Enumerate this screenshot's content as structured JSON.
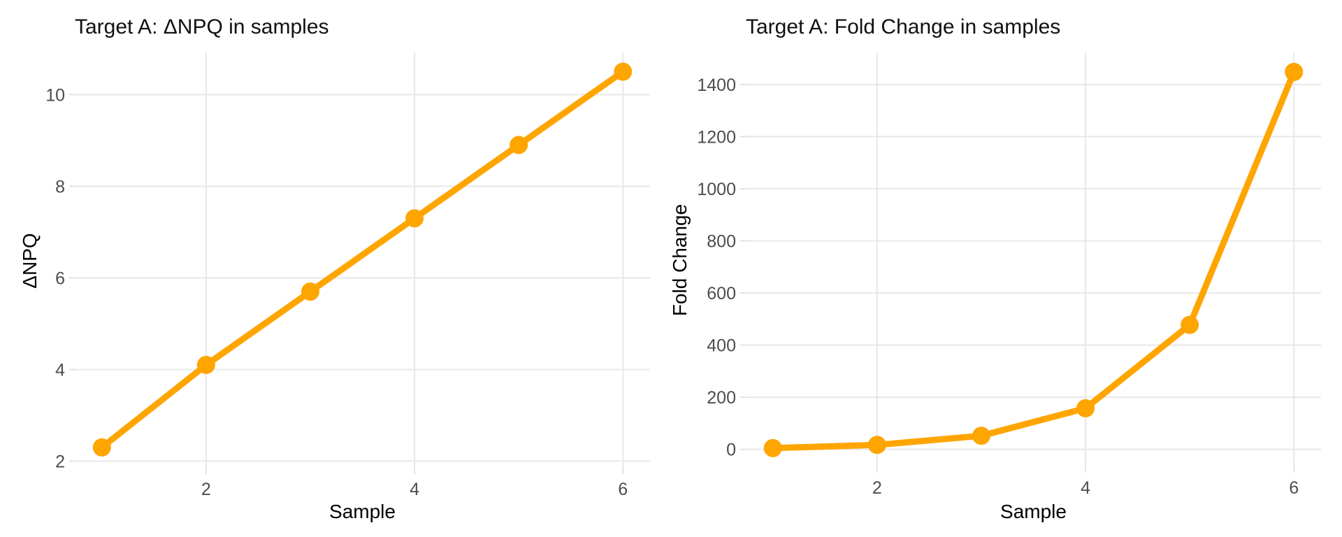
{
  "figure": {
    "background": "#ffffff"
  },
  "style": {
    "accent_color": "#FFA500",
    "grid_color": "#e8e8e8",
    "tick_mark_color": "#e0e0e0",
    "tick_label_color": "#4d4d4d",
    "text_color": "#000000",
    "line_width": 9,
    "marker_radius": 13
  },
  "chart_data": [
    {
      "type": "line",
      "title": "Target A: ΔNPQ in samples",
      "xlabel": "Sample",
      "ylabel": "ΔNPQ",
      "x": [
        1,
        2,
        3,
        4,
        5,
        6
      ],
      "series": [
        {
          "name": "ΔNPQ",
          "values": [
            2.3,
            4.1,
            5.7,
            7.3,
            8.9,
            10.5
          ]
        }
      ],
      "xlim": [
        0.74,
        6.26
      ],
      "ylim": [
        1.84,
        10.92
      ],
      "xticks": [
        2,
        4,
        6
      ],
      "yticks": [
        2,
        4,
        6,
        8,
        10
      ],
      "grid": true,
      "legend": false,
      "marker": "circle",
      "line_color": "#FFA500"
    },
    {
      "type": "line",
      "title": "Target A: Fold Change in samples",
      "xlabel": "Sample",
      "ylabel": "Fold Change",
      "x": [
        1,
        2,
        3,
        4,
        5,
        6
      ],
      "series": [
        {
          "name": "Fold Change",
          "values": [
            4.9,
            17.1,
            52.0,
            157.6,
            477.7,
            1448.2
          ]
        }
      ],
      "xlim": [
        0.74,
        6.26
      ],
      "ylim": [
        -68,
        1523
      ],
      "xticks": [
        2,
        4,
        6
      ],
      "yticks": [
        0,
        200,
        400,
        600,
        800,
        1000,
        1200,
        1400
      ],
      "grid": true,
      "legend": false,
      "marker": "circle",
      "line_color": "#FFA500"
    }
  ]
}
